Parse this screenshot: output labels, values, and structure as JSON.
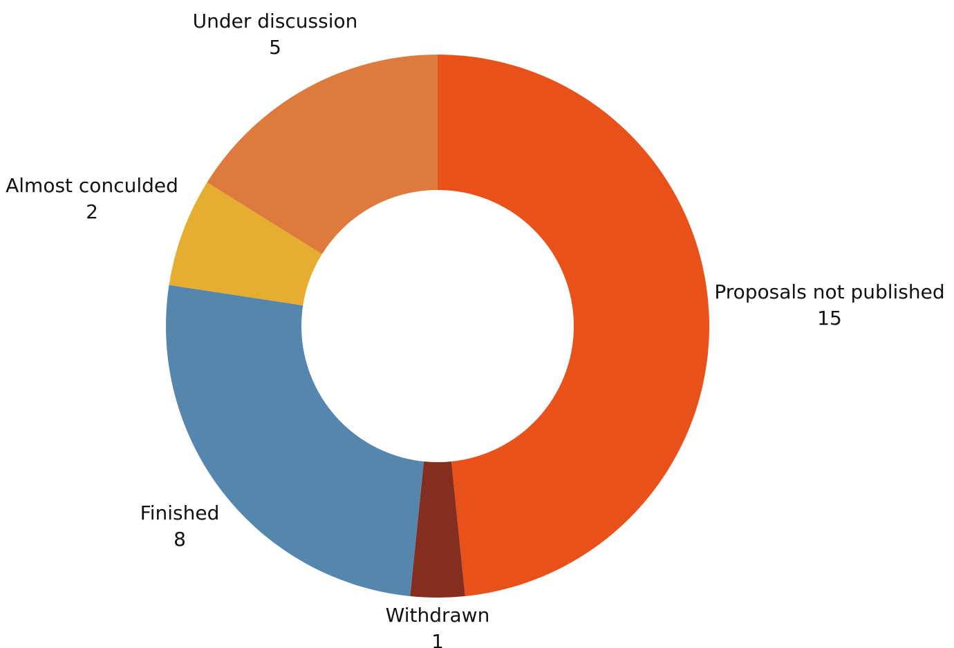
{
  "chart_data": {
    "type": "pie",
    "variant": "donut",
    "title": "",
    "slices": [
      {
        "label": "Proposals not published",
        "value": 15,
        "display_value": "15",
        "color": "#E8521A"
      },
      {
        "label": "Withdrawn",
        "value": 1,
        "display_value": "1",
        "color": "#832E1E"
      },
      {
        "label": "Finished",
        "value": 8,
        "display_value": "8",
        "color": "#5586AE"
      },
      {
        "label": "Almost conculded",
        "value": 2,
        "display_value": "2",
        "color": "#E6AE30"
      },
      {
        "label": "Under discussion",
        "value": 5,
        "display_value": "5",
        "color": "#DE7A3D"
      }
    ],
    "legend": "none"
  }
}
